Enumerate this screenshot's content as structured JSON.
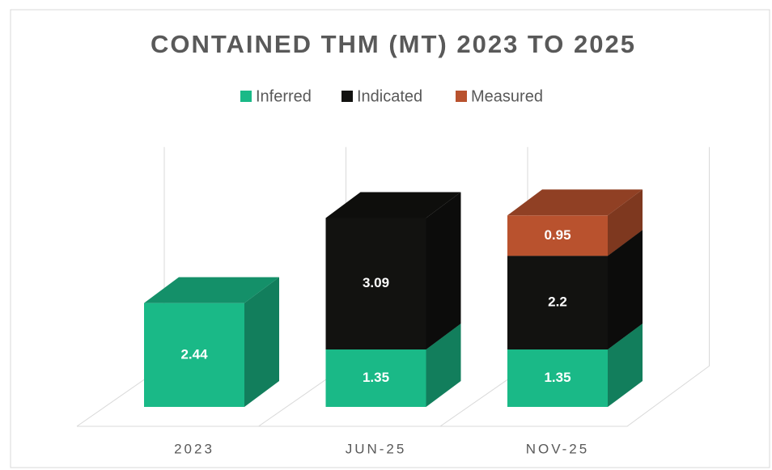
{
  "chart_data": {
    "type": "bar3d_stacked",
    "title": "CONTAINED THM (MT) 2023 TO 2025",
    "categories": [
      "2023",
      "JUN-25",
      "NOV-25"
    ],
    "series": [
      {
        "name": "Inferred",
        "color": "#1ab987",
        "values": [
          2.44,
          1.35,
          1.35
        ]
      },
      {
        "name": "Indicated",
        "color": "#121210",
        "values": [
          null,
          3.09,
          2.2
        ]
      },
      {
        "name": "Measured",
        "color": "#b9522e",
        "values": [
          null,
          null,
          0.95
        ]
      }
    ],
    "ylim": [
      0,
      5.5
    ],
    "legend": "top"
  }
}
